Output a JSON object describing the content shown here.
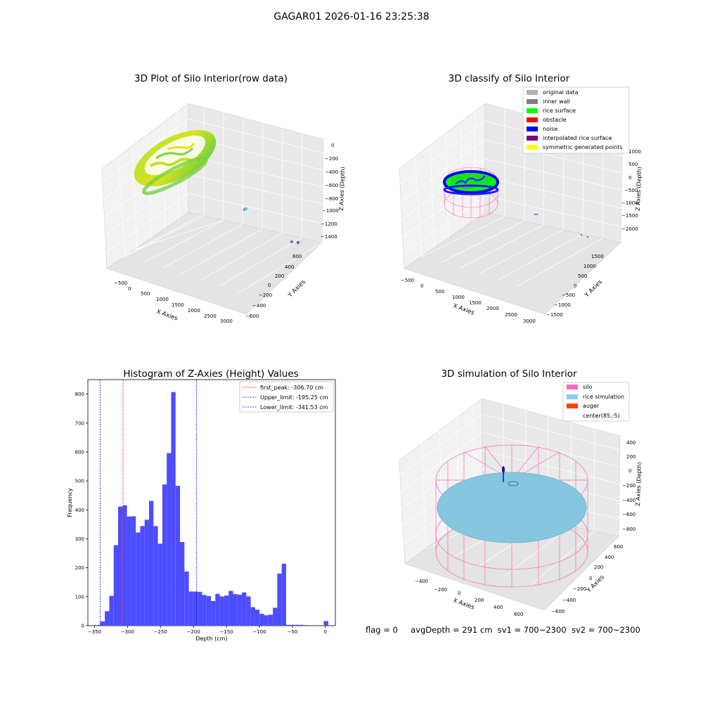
{
  "figure_title": "GAGAR01 2026-01-16 23:25:38",
  "footer": {
    "flag": "flag = 0",
    "avg_depth": "avgDepth = 291 cm",
    "sv1": "sv1 = 700~2300",
    "sv2": "sv2 = 700~2300"
  },
  "chart_data": [
    {
      "type": "scatter",
      "projection": "3d",
      "title": "3D Plot of Silo Interior(row data)",
      "xlabel": "X Axies",
      "ylabel": "Y Axies",
      "zlabel": "Z Axies (Depth)",
      "xticks": [
        "−500",
        "0",
        "500",
        "1000",
        "1500",
        "2000",
        "2500",
        "3000"
      ],
      "yticks": [
        "600",
        "400",
        "200",
        "0",
        "−200",
        "−400",
        "−600"
      ],
      "zticks": [
        "0",
        "−200",
        "−400",
        "−600",
        "−800",
        "−1000",
        "−1200",
        "−1400"
      ],
      "colormap": "viridis",
      "grid": true
    },
    {
      "type": "scatter",
      "projection": "3d",
      "title": "3D classify of Silo Interior",
      "xlabel": "X Axies",
      "ylabel": "Y Axies",
      "zlabel": "Z Axies (Depth)",
      "xticks": [
        "−500",
        "0",
        "500",
        "1000",
        "1500",
        "2000",
        "2500",
        "3000"
      ],
      "yticks": [
        "1500",
        "1000",
        "500",
        "0",
        "−500",
        "−1000",
        "−1500"
      ],
      "zticks": [
        "1000",
        "500",
        "0",
        "−500",
        "−1000",
        "−1500",
        "−2000"
      ],
      "legend_position": "top-right",
      "legend": [
        {
          "label": "original data",
          "color": "#b0b0b0"
        },
        {
          "label": "inner wall",
          "color": "#808080"
        },
        {
          "label": "rice surface",
          "color": "#00ff00"
        },
        {
          "label": "obstacle",
          "color": "#ff0000"
        },
        {
          "label": "noise",
          "color": "#0000ff"
        },
        {
          "label": "interpolated rice surface",
          "color": "#800080"
        },
        {
          "label": "symmetric generated points",
          "color": "#ffff00"
        }
      ],
      "grid": true
    },
    {
      "type": "bar",
      "subtype": "histogram",
      "title": "Histogram of Z-Axies (Height) Values",
      "xlabel": "Depth (cm)",
      "ylabel": "Frequency",
      "xlim": [
        -360,
        15
      ],
      "ylim": [
        0,
        850
      ],
      "xticks": [
        -350,
        -300,
        -250,
        -200,
        -150,
        -100,
        -50,
        0
      ],
      "yticks": [
        0,
        100,
        200,
        300,
        400,
        500,
        600,
        700,
        800
      ],
      "bar_color": "#4d4dff",
      "bin_width": 6.7,
      "bins": [
        {
          "x0": -345,
          "value": 3
        },
        {
          "x0": -341,
          "value": 15
        },
        {
          "x0": -334.3,
          "value": 50
        },
        {
          "x0": -327.6,
          "value": 103
        },
        {
          "x0": -320.9,
          "value": 278
        },
        {
          "x0": -314.2,
          "value": 411
        },
        {
          "x0": -307.5,
          "value": 416
        },
        {
          "x0": -300.8,
          "value": 377
        },
        {
          "x0": -294.1,
          "value": 378
        },
        {
          "x0": -287.4,
          "value": 322
        },
        {
          "x0": -280.7,
          "value": 344
        },
        {
          "x0": -274,
          "value": 366
        },
        {
          "x0": -267.3,
          "value": 431
        },
        {
          "x0": -260.6,
          "value": 344
        },
        {
          "x0": -253.9,
          "value": 283
        },
        {
          "x0": -247.2,
          "value": 488
        },
        {
          "x0": -240.5,
          "value": 596
        },
        {
          "x0": -233.8,
          "value": 807
        },
        {
          "x0": -227.1,
          "value": 483
        },
        {
          "x0": -220.4,
          "value": 289
        },
        {
          "x0": -213.7,
          "value": 187
        },
        {
          "x0": -207,
          "value": 118
        },
        {
          "x0": -200.3,
          "value": 118
        },
        {
          "x0": -193.6,
          "value": 117
        },
        {
          "x0": -186.9,
          "value": 106
        },
        {
          "x0": -180.2,
          "value": 102
        },
        {
          "x0": -173.5,
          "value": 85
        },
        {
          "x0": -166.8,
          "value": 110
        },
        {
          "x0": -160.1,
          "value": 101
        },
        {
          "x0": -153.4,
          "value": 104
        },
        {
          "x0": -146.7,
          "value": 120
        },
        {
          "x0": -140,
          "value": 109
        },
        {
          "x0": -133.3,
          "value": 107
        },
        {
          "x0": -126.6,
          "value": 115
        },
        {
          "x0": -119.9,
          "value": 101
        },
        {
          "x0": -113.2,
          "value": 64
        },
        {
          "x0": -106.5,
          "value": 55
        },
        {
          "x0": -99.8,
          "value": 41
        },
        {
          "x0": -93.1,
          "value": 36
        },
        {
          "x0": -86.4,
          "value": 38
        },
        {
          "x0": -79.7,
          "value": 62
        },
        {
          "x0": -73,
          "value": 180
        },
        {
          "x0": -66.3,
          "value": 214
        },
        {
          "x0": -59.6,
          "value": 3
        },
        {
          "x0": -52.9,
          "value": 3
        },
        {
          "x0": -46.2,
          "value": 3
        },
        {
          "x0": -39.5,
          "value": 3
        },
        {
          "x0": -32.8,
          "value": 2
        },
        {
          "x0": -2.5,
          "value": 16
        }
      ],
      "vlines": [
        {
          "label": "first_peak: -306.70 cm",
          "x": -306.7,
          "color": "#ff0000"
        },
        {
          "label": "Upper_limit: -195.25 cm",
          "x": -195.25,
          "color": "#0000ff"
        },
        {
          "label": "Lower_limit: -341.53 cm",
          "x": -341.53,
          "color": "#0000ff"
        }
      ],
      "legend_position": "top-right",
      "grid": false
    },
    {
      "type": "surface",
      "projection": "3d",
      "title": "3D simulation of Silo Interior",
      "xlabel": "X Axies",
      "ylabel": "Y Axies",
      "zlabel": "Z Axies (Depth)",
      "xticks": [
        "−400",
        "−200",
        "0",
        "200",
        "400",
        "600"
      ],
      "yticks": [
        "600",
        "400",
        "200",
        "0",
        "−200",
        "−400",
        "−600"
      ],
      "zticks": [
        "400",
        "200",
        "0",
        "−200",
        "−400",
        "−600",
        "−800"
      ],
      "legend_position": "top-right",
      "legend": [
        {
          "label": "silo",
          "color": "#ff69b4"
        },
        {
          "label": "rice simulation",
          "color": "#87ceeb"
        },
        {
          "label": "auger",
          "color": "#ff4500"
        },
        {
          "label": "center(85,-5)",
          "color": "#ffffff"
        }
      ],
      "grid": true
    }
  ]
}
